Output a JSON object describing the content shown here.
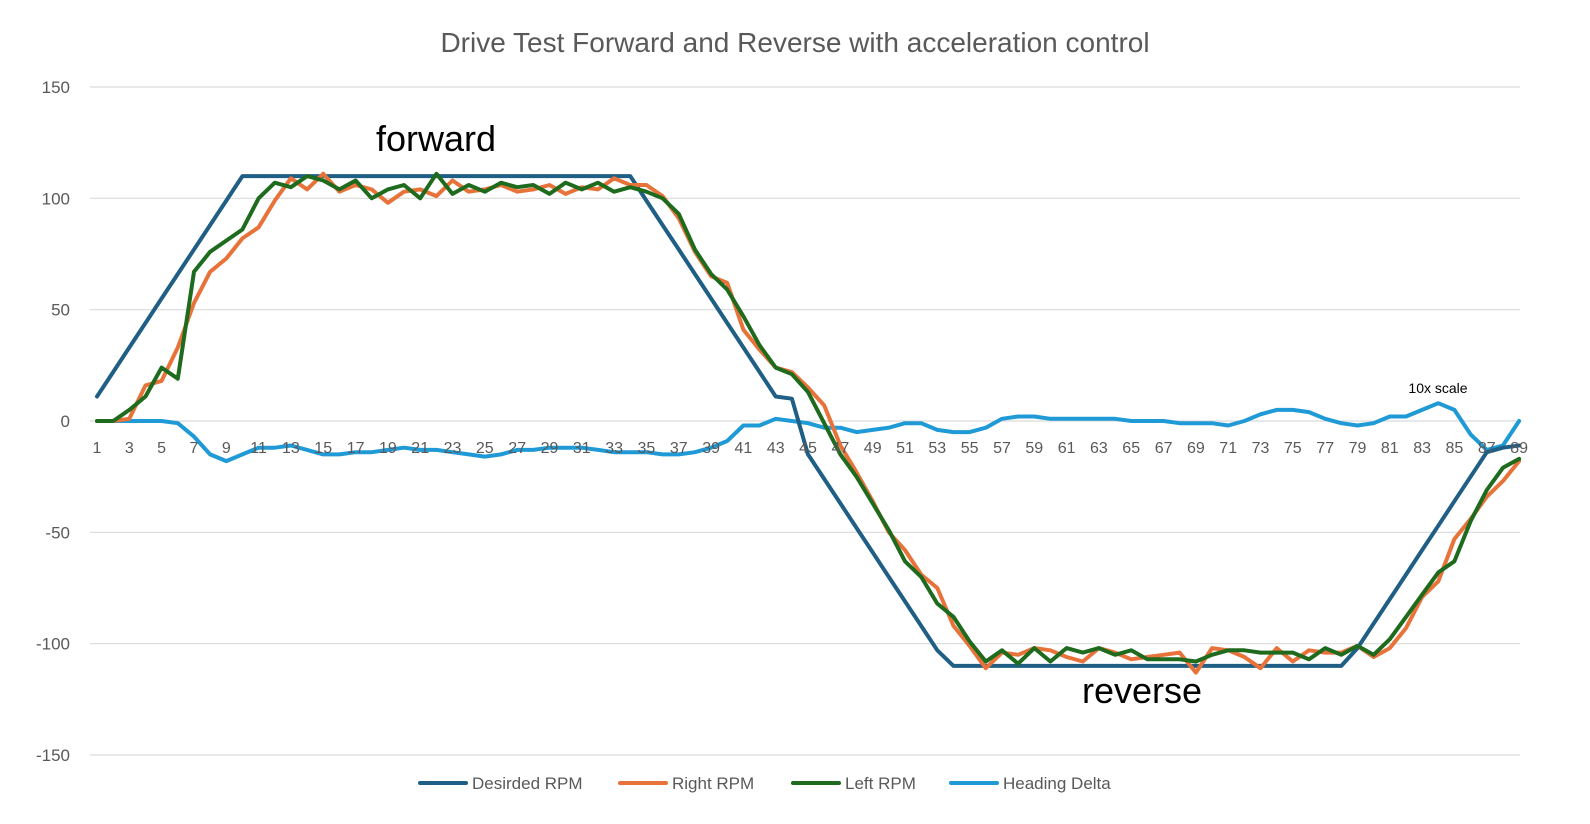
{
  "chart_data": {
    "type": "line",
    "title": "Drive Test Forward and Reverse with acceleration control",
    "xlabel": "",
    "ylabel": "",
    "ylim": [
      -150,
      150
    ],
    "yticks": [
      150,
      100,
      50,
      0,
      -50,
      -100,
      -150
    ],
    "grid": true,
    "legend_position": "bottom",
    "x": [
      1,
      2,
      3,
      4,
      5,
      6,
      7,
      8,
      9,
      10,
      11,
      12,
      13,
      14,
      15,
      16,
      17,
      18,
      19,
      20,
      21,
      22,
      23,
      24,
      25,
      26,
      27,
      28,
      29,
      30,
      31,
      32,
      33,
      34,
      35,
      36,
      37,
      38,
      39,
      40,
      41,
      42,
      43,
      44,
      45,
      46,
      47,
      48,
      49,
      50,
      51,
      52,
      53,
      54,
      55,
      56,
      57,
      58,
      59,
      60,
      61,
      62,
      63,
      64,
      65,
      66,
      67,
      68,
      69,
      70,
      71,
      72,
      73,
      74,
      75,
      76,
      77,
      78,
      79,
      80,
      81,
      82,
      83,
      84,
      85,
      86,
      87,
      88,
      89
    ],
    "x_tick_labels": [
      "1",
      "3",
      "5",
      "7",
      "9",
      "11",
      "13",
      "15",
      "17",
      "19",
      "21",
      "23",
      "25",
      "27",
      "29",
      "31",
      "33",
      "35",
      "37",
      "39",
      "41",
      "43",
      "45",
      "47",
      "49",
      "51",
      "53",
      "55",
      "57",
      "59",
      "61",
      "63",
      "65",
      "67",
      "69",
      "71",
      "73",
      "75",
      "77",
      "79",
      "81",
      "83",
      "85",
      "87",
      "89"
    ],
    "series": [
      {
        "name": "Desirded RPM",
        "color": "#1f5f86",
        "values": [
          11,
          22,
          33,
          44,
          55,
          66,
          77,
          88,
          99,
          110,
          110,
          110,
          110,
          110,
          110,
          110,
          110,
          110,
          110,
          110,
          110,
          110,
          110,
          110,
          110,
          110,
          110,
          110,
          110,
          110,
          110,
          110,
          110,
          110,
          99,
          88,
          77,
          66,
          55,
          44,
          33,
          22,
          11,
          10,
          -15,
          -26,
          -37,
          -48,
          -59,
          -70,
          -81,
          -92,
          -103,
          -110,
          -110,
          -110,
          -110,
          -110,
          -110,
          -110,
          -110,
          -110,
          -110,
          -110,
          -110,
          -110,
          -110,
          -110,
          -110,
          -110,
          -110,
          -110,
          -110,
          -110,
          -110,
          -110,
          -110,
          -110,
          -102,
          -91,
          -80,
          -69,
          -58,
          -47,
          -36,
          -25,
          -14,
          -12,
          -11
        ]
      },
      {
        "name": "Right RPM",
        "color": "#e8733a",
        "values": [
          0,
          0,
          1,
          16,
          18,
          33,
          53,
          67,
          73,
          82,
          87,
          99,
          109,
          104,
          111,
          103,
          106,
          104,
          98,
          103,
          104,
          101,
          108,
          103,
          104,
          106,
          103,
          104,
          106,
          102,
          105,
          104,
          109,
          106,
          106,
          101,
          91,
          76,
          65,
          62,
          41,
          32,
          24,
          22,
          15,
          7,
          -11,
          -23,
          -36,
          -50,
          -58,
          -69,
          -75,
          -92,
          -101,
          -111,
          -104,
          -105,
          -102,
          -103,
          -106,
          -108,
          -102,
          -104,
          -107,
          -106,
          -105,
          -104,
          -113,
          -102,
          -103,
          -106,
          -111,
          -102,
          -108,
          -103,
          -104,
          -104,
          -101,
          -106,
          -102,
          -93,
          -79,
          -72,
          -53,
          -44,
          -34,
          -27,
          -18
        ]
      },
      {
        "name": "Left RPM",
        "color": "#1e6b1e",
        "values": [
          0,
          0,
          5,
          11,
          24,
          19,
          67,
          76,
          81,
          86,
          100,
          107,
          105,
          110,
          108,
          104,
          108,
          100,
          104,
          106,
          100,
          111,
          102,
          106,
          103,
          107,
          105,
          106,
          102,
          107,
          104,
          107,
          103,
          105,
          103,
          100,
          93,
          77,
          66,
          59,
          47,
          34,
          24,
          21,
          13,
          -1,
          -15,
          -25,
          -37,
          -49,
          -63,
          -70,
          -82,
          -88,
          -99,
          -108,
          -103,
          -109,
          -102,
          -108,
          -102,
          -104,
          -102,
          -105,
          -103,
          -107,
          -107,
          -107,
          -108,
          -105,
          -103,
          -103,
          -104,
          -104,
          -104,
          -107,
          -102,
          -105,
          -101,
          -105,
          -98,
          -88,
          -78,
          -68,
          -63,
          -45,
          -31,
          -21,
          -17
        ]
      },
      {
        "name": "Heading Delta",
        "color": "#1f9ad6",
        "values": [
          0,
          0,
          0,
          0,
          0,
          -1,
          -7,
          -15,
          -18,
          -15,
          -12,
          -12,
          -11,
          -13,
          -15,
          -15,
          -14,
          -14,
          -13,
          -12,
          -13,
          -13,
          -14,
          -15,
          -16,
          -15,
          -13,
          -13,
          -12,
          -12,
          -12,
          -13,
          -14,
          -14,
          -14,
          -15,
          -15,
          -14,
          -12,
          -9,
          -2,
          -2,
          1,
          0,
          -1,
          -3,
          -3,
          -5,
          -4,
          -3,
          -1,
          -1,
          -4,
          -5,
          -5,
          -3,
          1,
          2,
          2,
          1,
          1,
          1,
          1,
          1,
          0,
          0,
          0,
          -1,
          -1,
          -1,
          -2,
          0,
          3,
          5,
          5,
          4,
          1,
          -1,
          -2,
          -1,
          2,
          2,
          5,
          8,
          5,
          -6,
          -13,
          -11,
          0
        ]
      }
    ],
    "annotations": [
      "forward",
      "reverse",
      "10x scale"
    ]
  }
}
